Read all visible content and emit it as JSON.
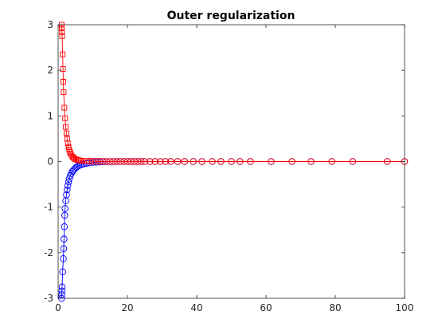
{
  "chart_data": {
    "type": "line",
    "title": "Outer regularization",
    "xlabel": "",
    "ylabel": "",
    "xlim": [
      0,
      100
    ],
    "ylim": [
      -3,
      3
    ],
    "grid": false,
    "x_ticks": [
      0,
      20,
      40,
      60,
      80,
      100
    ],
    "y_ticks": [
      -3,
      -2,
      -1,
      0,
      1,
      2,
      3
    ],
    "x_tick_labels": [
      "0",
      "20",
      "40",
      "60",
      "80",
      "100"
    ],
    "y_tick_labels": [
      "-3",
      "-2",
      "-1",
      "0",
      "1",
      "2",
      "3"
    ],
    "series": [
      {
        "color": "#0000ff",
        "marker": "circle",
        "points": [
          [
            1.0,
            -3.0
          ],
          [
            1.05,
            -2.92
          ],
          [
            1.1,
            -2.84
          ],
          [
            1.15,
            -2.75
          ],
          [
            1.3,
            -2.42
          ],
          [
            1.5,
            -2.13
          ],
          [
            1.6,
            -1.91
          ],
          [
            1.7,
            -1.7
          ],
          [
            1.8,
            -1.43
          ],
          [
            1.9,
            -1.18
          ],
          [
            2.0,
            -1.03
          ],
          [
            2.2,
            -0.86
          ],
          [
            2.4,
            -0.73
          ],
          [
            2.6,
            -0.62
          ],
          [
            2.8,
            -0.53
          ],
          [
            3.0,
            -0.45
          ],
          [
            3.2,
            -0.38
          ],
          [
            3.5,
            -0.31
          ],
          [
            3.8,
            -0.26
          ],
          [
            4.1,
            -0.22
          ],
          [
            4.4,
            -0.19
          ],
          [
            4.8,
            -0.16
          ],
          [
            5.2,
            -0.13
          ],
          [
            5.6,
            -0.11
          ],
          [
            6.0,
            -0.09
          ],
          [
            6.5,
            -0.075
          ],
          [
            7.0,
            -0.06
          ],
          [
            7.5,
            -0.05
          ],
          [
            8.2,
            -0.04
          ],
          [
            9.0,
            -0.03
          ],
          [
            10.0,
            -0.02
          ],
          [
            11.0,
            -0.015
          ],
          [
            12.0,
            -0.01
          ],
          [
            13.0,
            -0.007
          ],
          [
            14.0,
            -0.005
          ],
          [
            15.0,
            -0.003
          ],
          [
            16.0,
            -0.002
          ],
          [
            17.0,
            -0.001
          ],
          [
            18.0,
            0
          ],
          [
            19.0,
            0
          ],
          [
            20.0,
            0
          ],
          [
            21.0,
            0
          ],
          [
            22.0,
            0
          ],
          [
            23.0,
            0
          ],
          [
            24.0,
            0
          ],
          [
            25.0,
            0
          ],
          [
            26.5,
            0
          ],
          [
            28.0,
            0
          ],
          [
            29.5,
            0
          ],
          [
            31.0,
            0
          ],
          [
            32.5,
            0
          ],
          [
            34.5,
            0
          ],
          [
            36.5,
            0
          ],
          [
            39.0,
            0
          ],
          [
            41.5,
            0
          ],
          [
            44.5,
            0
          ],
          [
            47.0,
            0
          ],
          [
            50.0,
            0
          ],
          [
            52.5,
            0
          ],
          [
            55.5,
            0
          ],
          [
            61.5,
            0
          ],
          [
            67.5,
            0
          ],
          [
            73.0,
            0
          ],
          [
            79.0,
            0
          ],
          [
            85.0,
            0
          ],
          [
            95.0,
            0
          ],
          [
            100.0,
            0
          ]
        ]
      },
      {
        "color": "#ff0000",
        "marker": "square",
        "points": [
          [
            1.0,
            3.0
          ],
          [
            1.05,
            2.92
          ],
          [
            1.1,
            2.84
          ],
          [
            1.15,
            2.75
          ],
          [
            1.3,
            2.35
          ],
          [
            1.4,
            2.03
          ],
          [
            1.5,
            1.75
          ],
          [
            1.6,
            1.52
          ],
          [
            1.8,
            1.18
          ],
          [
            2.0,
            0.95
          ],
          [
            2.2,
            0.76
          ],
          [
            2.4,
            0.62
          ],
          [
            2.6,
            0.5
          ],
          [
            2.8,
            0.4
          ],
          [
            3.0,
            0.32
          ],
          [
            3.2,
            0.26
          ],
          [
            3.4,
            0.21
          ],
          [
            3.6,
            0.17
          ],
          [
            3.9,
            0.13
          ],
          [
            4.2,
            0.1
          ],
          [
            4.5,
            0.08
          ],
          [
            4.8,
            0.06
          ],
          [
            5.2,
            0.045
          ],
          [
            5.6,
            0.035
          ],
          [
            6.0,
            0.028
          ],
          [
            6.5,
            0.021
          ],
          [
            7.0,
            0.016
          ],
          [
            7.6,
            0.012
          ],
          [
            8.3,
            0.009
          ]
        ]
      },
      {
        "color": "#ff0000",
        "marker": "circle",
        "points": [
          [
            9.0,
            0.007
          ],
          [
            10.0,
            0.005
          ],
          [
            11.0,
            0.004
          ],
          [
            12.0,
            0.003
          ],
          [
            13.0,
            0.002
          ],
          [
            14.0,
            0.001
          ],
          [
            15.0,
            0
          ],
          [
            16.0,
            0
          ],
          [
            17.0,
            0
          ],
          [
            18.0,
            0
          ],
          [
            19.0,
            0
          ],
          [
            20.0,
            0
          ],
          [
            21.0,
            0
          ],
          [
            22.0,
            0
          ],
          [
            23.0,
            0
          ],
          [
            24.0,
            0
          ],
          [
            25.0,
            0
          ],
          [
            26.5,
            0
          ],
          [
            28.0,
            0
          ],
          [
            29.5,
            0
          ],
          [
            31.0,
            0
          ],
          [
            32.5,
            0
          ],
          [
            34.5,
            0
          ],
          [
            36.5,
            0
          ],
          [
            39.0,
            0
          ],
          [
            41.5,
            0
          ],
          [
            44.5,
            0
          ],
          [
            47.0,
            0
          ],
          [
            50.0,
            0
          ],
          [
            52.5,
            0
          ],
          [
            55.5,
            0
          ],
          [
            61.5,
            0
          ],
          [
            67.5,
            0
          ],
          [
            73.0,
            0
          ],
          [
            79.0,
            0
          ],
          [
            85.0,
            0
          ],
          [
            95.0,
            0
          ],
          [
            100.0,
            0
          ]
        ]
      }
    ]
  }
}
